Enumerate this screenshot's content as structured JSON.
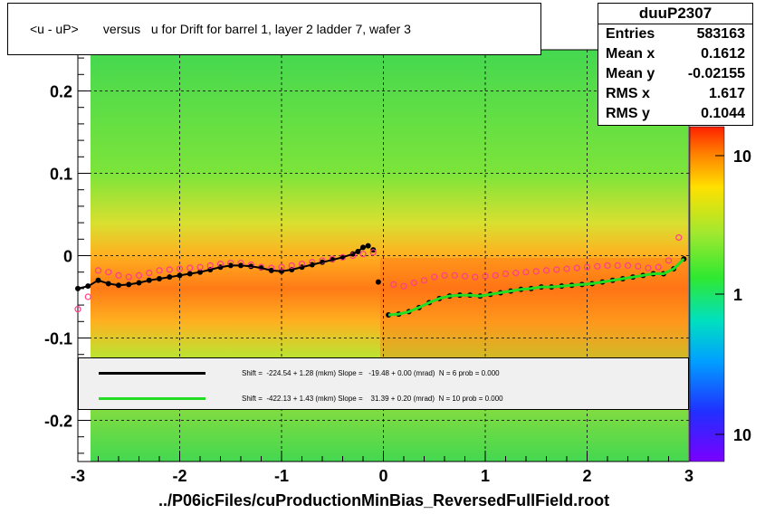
{
  "chart_data": {
    "type": "scatter",
    "title": "<u - uP>       versus   u for Drift for barrel 1, layer 2 ladder 7, wafer 3",
    "xlabel": "../P06icFiles/cuProductionMinBias_ReversedFullField.root",
    "ylabel": "",
    "xlim": [
      -3,
      3
    ],
    "ylim": [
      -0.25,
      0.25
    ],
    "x_ticks": [
      "-3",
      "-2",
      "-1",
      "0",
      "1",
      "2",
      "3"
    ],
    "y_ticks": [
      "0.2",
      "0.1",
      "0",
      "-0.1",
      "-0.2"
    ],
    "colorbar_ticks": [
      "10",
      "1",
      "10"
    ],
    "grid": true,
    "series": [
      {
        "name": "black profile",
        "color": "#000000",
        "x": [
          -3.0,
          -2.9,
          -2.8,
          -2.7,
          -2.6,
          -2.5,
          -2.4,
          -2.3,
          -2.2,
          -2.1,
          -2.0,
          -1.9,
          -1.8,
          -1.7,
          -1.6,
          -1.5,
          -1.4,
          -1.3,
          -1.2,
          -1.1,
          -1.0,
          -0.9,
          -0.8,
          -0.7,
          -0.6,
          -0.5,
          -0.4,
          -0.3,
          -0.25,
          -0.2,
          -0.15,
          -0.1,
          -0.05,
          0.05,
          0.15,
          0.25,
          0.35,
          0.45,
          0.55,
          0.65,
          0.75,
          0.85,
          0.95,
          1.05,
          1.15,
          1.25,
          1.35,
          1.45,
          1.55,
          1.65,
          1.75,
          1.85,
          1.95,
          2.05,
          2.15,
          2.25,
          2.35,
          2.45,
          2.55,
          2.65,
          2.75,
          2.85,
          2.95
        ],
        "y": [
          -0.04,
          -0.037,
          -0.03,
          -0.034,
          -0.036,
          -0.035,
          -0.033,
          -0.03,
          -0.028,
          -0.026,
          -0.024,
          -0.022,
          -0.02,
          -0.017,
          -0.014,
          -0.012,
          -0.012,
          -0.013,
          -0.015,
          -0.018,
          -0.019,
          -0.017,
          -0.014,
          -0.011,
          -0.008,
          -0.005,
          -0.002,
          0.002,
          0.005,
          0.01,
          0.012,
          0.007,
          -0.032,
          -0.072,
          -0.071,
          -0.068,
          -0.063,
          -0.057,
          -0.052,
          -0.049,
          -0.048,
          -0.048,
          -0.049,
          -0.047,
          -0.045,
          -0.043,
          -0.041,
          -0.04,
          -0.038,
          -0.038,
          -0.037,
          -0.036,
          -0.035,
          -0.034,
          -0.032,
          -0.03,
          -0.028,
          -0.026,
          -0.024,
          -0.022,
          -0.022,
          -0.016,
          -0.004
        ]
      },
      {
        "name": "pink profile",
        "color": "#ff3c8c",
        "x": [
          -3.0,
          -2.9,
          -2.8,
          -2.7,
          -2.6,
          -2.5,
          -2.4,
          -2.3,
          -2.2,
          -2.1,
          -2.0,
          -1.9,
          -1.8,
          -1.7,
          -1.6,
          -1.5,
          -1.4,
          -1.3,
          -1.2,
          -1.1,
          -1.0,
          -0.9,
          -0.8,
          -0.7,
          -0.6,
          -0.5,
          -0.4,
          -0.3,
          -0.2,
          -0.1,
          0.1,
          0.2,
          0.3,
          0.4,
          0.5,
          0.6,
          0.7,
          0.8,
          0.9,
          1.0,
          1.1,
          1.2,
          1.3,
          1.4,
          1.5,
          1.6,
          1.7,
          1.8,
          1.9,
          2.0,
          2.1,
          2.2,
          2.3,
          2.4,
          2.5,
          2.6,
          2.7,
          2.8,
          2.9
        ],
        "y": [
          -0.065,
          -0.05,
          -0.018,
          -0.02,
          -0.024,
          -0.026,
          -0.024,
          -0.021,
          -0.018,
          -0.017,
          -0.016,
          -0.015,
          -0.014,
          -0.012,
          -0.01,
          -0.009,
          -0.009,
          -0.011,
          -0.014,
          -0.015,
          -0.014,
          -0.012,
          -0.01,
          -0.008,
          -0.006,
          -0.004,
          -0.002,
          0.0,
          0.002,
          0.004,
          -0.035,
          -0.037,
          -0.033,
          -0.03,
          -0.026,
          -0.024,
          -0.024,
          -0.025,
          -0.026,
          -0.025,
          -0.024,
          -0.022,
          -0.021,
          -0.02,
          -0.019,
          -0.018,
          -0.017,
          -0.016,
          -0.015,
          -0.014,
          -0.013,
          -0.012,
          -0.012,
          -0.012,
          -0.013,
          -0.015,
          -0.014,
          -0.006,
          0.022
        ]
      }
    ],
    "fits": [
      {
        "color": "#000000",
        "text": "Shift =  -224.54 + 1.28 (mkm) Slope =   -19.48 + 0.00 (mrad)  N = 6 prob = 0.000"
      },
      {
        "color": "#22dd22",
        "text": "Shift =  -422.13 + 1.43 (mkm) Slope =    31.39 + 0.20 (mrad)  N = 10 prob = 0.000"
      }
    ]
  },
  "stats": {
    "name": "duuP2307",
    "rows": [
      {
        "label": "Entries",
        "value": "583163"
      },
      {
        "label": "Mean x",
        "value": "0.1612"
      },
      {
        "label": "Mean y",
        "value": "-0.02155"
      },
      {
        "label": "RMS x",
        "value": "1.617"
      },
      {
        "label": "RMS y",
        "value": "0.1044"
      }
    ]
  },
  "colors": {
    "bg_green": "#4ce84c",
    "band_orange": "#ffb020",
    "band_red": "#ff5010",
    "green_fit": "#22dd22"
  }
}
